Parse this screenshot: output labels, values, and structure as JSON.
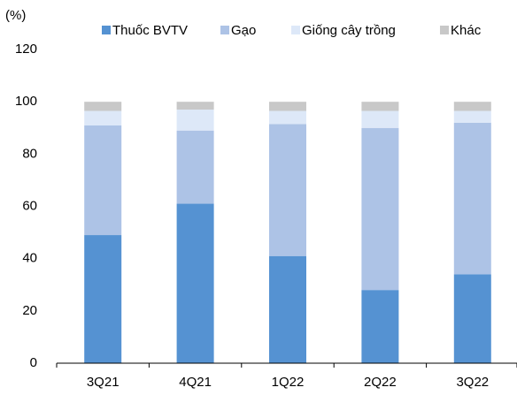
{
  "chart_data": {
    "type": "stacked_bar",
    "y_label": "(%)",
    "categories": [
      "3Q21",
      "4Q21",
      "1Q22",
      "2Q22",
      "3Q22"
    ],
    "series": [
      {
        "name": "Thuốc BVTV",
        "color": "#5592d2",
        "values": [
          49,
          61,
          41,
          28,
          34
        ]
      },
      {
        "name": "Gạo",
        "color": "#adc3e6",
        "values": [
          42,
          28,
          50.5,
          62,
          58
        ]
      },
      {
        "name": "Giống cây trồng",
        "color": "#dde8f8",
        "values": [
          5.5,
          8,
          5,
          6.5,
          4.5
        ]
      },
      {
        "name": "Khác",
        "color": "#c8c8c8",
        "values": [
          3.5,
          3,
          3.5,
          3.5,
          3.5
        ]
      }
    ],
    "ylim": [
      0,
      120
    ],
    "yticks": [
      0,
      20,
      40,
      60,
      80,
      100,
      120
    ],
    "legend": "top"
  }
}
